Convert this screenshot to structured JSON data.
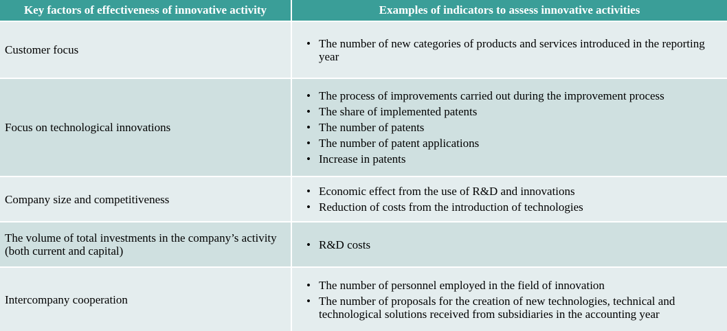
{
  "table": {
    "headers": [
      "Key factors of effectiveness of innovative activity",
      "Examples of indicators to assess innovative activities"
    ],
    "bullet_symbol": "•",
    "rows": [
      {
        "factor": "Customer focus",
        "indicators": [
          "The number of new categories of products and services introduced in the reporting year"
        ]
      },
      {
        "factor": "Focus on technological innovations",
        "indicators": [
          "The process of improvements carried out during the improvement process",
          "The share of implemented patents",
          "The number of patents",
          "The number of patent applications",
          "Increase in patents"
        ]
      },
      {
        "factor": "Company size and competitiveness",
        "indicators": [
          "Economic effect from the use of R&D and innovations",
          "Reduction of costs from the introduction of technologies"
        ]
      },
      {
        "factor": "The volume of total investments in the company’s activity (both current and capital)",
        "indicators": [
          "R&D costs"
        ]
      },
      {
        "factor": "Intercompany cooperation",
        "indicators": [
          "The number of personnel employed in the field of innovation",
          "The number of proposals for the creation of new technologies, technical and technological solutions received from subsidiaries in the accounting year"
        ]
      }
    ]
  },
  "colors": {
    "header_bg": "#3a9e98",
    "header_text": "#ffffff",
    "row_light": "#e4edee",
    "row_dark": "#cfe0e0"
  }
}
